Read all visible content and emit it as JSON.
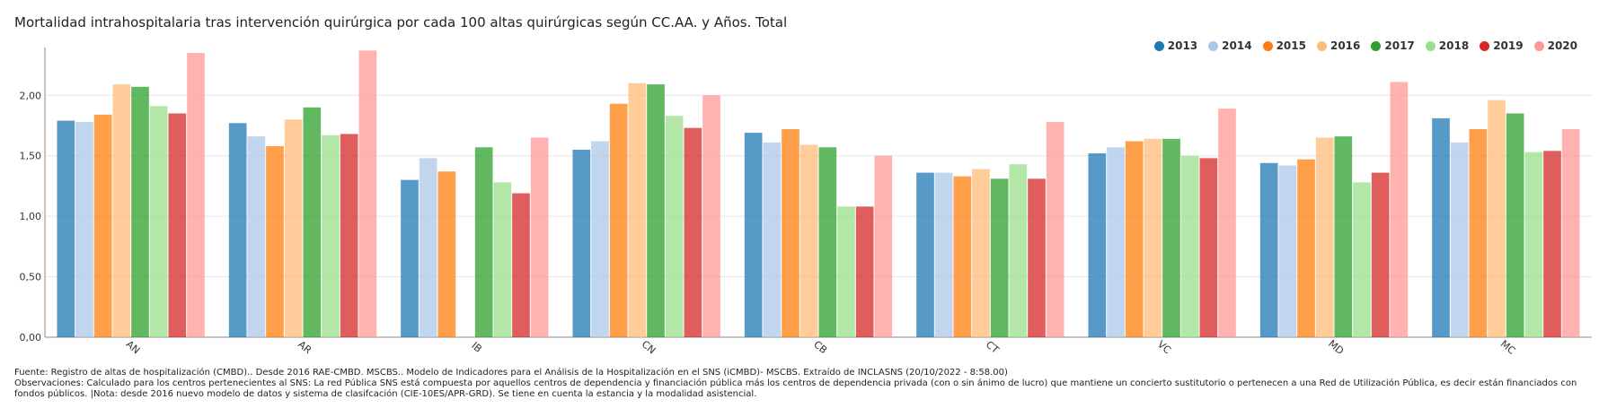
{
  "chart_data": {
    "type": "bar",
    "title": "Mortalidad intrahospitalaria tras intervención quirúrgica por cada 100 altas quirúrgicas según CC.AA. y Años. Total",
    "categories": [
      "AN",
      "AR",
      "IB",
      "CN",
      "CB",
      "CT",
      "VC",
      "MD",
      "MC"
    ],
    "series": [
      {
        "name": "2013",
        "color": "#1f77b4",
        "values": [
          1.79,
          1.77,
          1.3,
          1.55,
          1.69,
          1.36,
          1.52,
          1.44,
          1.81
        ]
      },
      {
        "name": "2014",
        "color": "#aec7e8",
        "values": [
          1.78,
          1.66,
          1.48,
          1.62,
          1.61,
          1.36,
          1.57,
          1.42,
          1.61
        ]
      },
      {
        "name": "2015",
        "color": "#ff7f0e",
        "values": [
          1.84,
          1.58,
          1.37,
          1.93,
          1.72,
          1.33,
          1.62,
          1.47,
          1.72
        ]
      },
      {
        "name": "2016",
        "color": "#ffbb78",
        "values": [
          2.09,
          1.8,
          null,
          2.1,
          1.59,
          1.39,
          1.64,
          1.65,
          1.96
        ]
      },
      {
        "name": "2017",
        "color": "#2ca02c",
        "values": [
          2.07,
          1.9,
          1.57,
          2.09,
          1.57,
          1.31,
          1.64,
          1.66,
          1.85
        ]
      },
      {
        "name": "2018",
        "color": "#98df8a",
        "values": [
          1.91,
          1.67,
          1.28,
          1.83,
          1.08,
          1.43,
          1.5,
          1.28,
          1.53
        ]
      },
      {
        "name": "2019",
        "color": "#d62728",
        "values": [
          1.85,
          1.68,
          1.19,
          1.73,
          1.08,
          1.31,
          1.48,
          1.36,
          1.54
        ]
      },
      {
        "name": "2020",
        "color": "#ff9896",
        "values": [
          2.35,
          2.37,
          1.65,
          2.0,
          1.5,
          1.78,
          1.89,
          2.11,
          1.72
        ]
      }
    ],
    "yticks": [
      0,
      0.5,
      1.0,
      1.5,
      2.0
    ],
    "ytick_labels": [
      "0,00",
      "0,50",
      "1,00",
      "1,50",
      "2,00"
    ],
    "ylim": [
      0,
      2.38
    ],
    "xlabel": "",
    "ylabel": "",
    "legend_position": "top-right",
    "grid": true
  },
  "footer": {
    "source": "Fuente: Registro de altas de hospitalización (CMBD).. Desde 2016 RAE-CMBD. MSCBS.. Modelo de Indicadores para el Análisis de la Hospitalización en el SNS (iCMBD)- MSCBS. Extraído de INCLASNS (20/10/2022 - 8:58.00)",
    "observations": "Observaciones: Calculado para los centros pertenecientes al SNS: La red Pública SNS está compuesta por aquellos centros de dependencia y financiación pública más los centros de dependencia privada (con o sin ánimo de lucro) que mantiene un concierto sustitutorio o pertenecen a una Red de Utilización Pública, es decir están financiados con fondos públicos.  |Nota: desde 2016 nuevo modelo de datos y sistema de clasifcación (CIE-10ES/APR-GRD). Se tiene en cuenta la estancia y la modalidad asistencial."
  }
}
